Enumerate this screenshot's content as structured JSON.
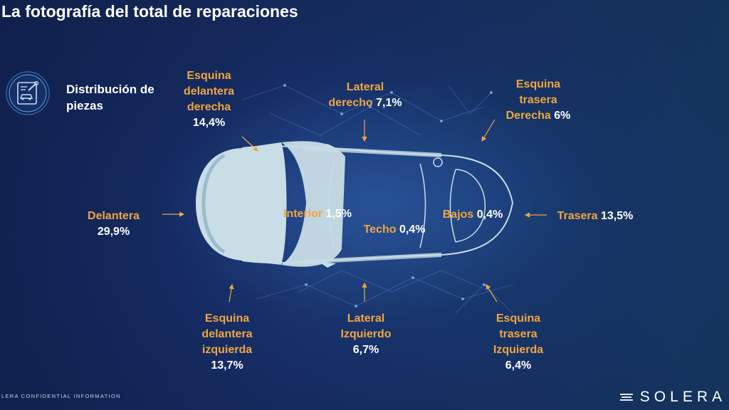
{
  "title": "La fotografía del total de reparaciones",
  "section": {
    "icon": "car-parts-distribution-icon",
    "label": "Distribución de piezas"
  },
  "labels": {
    "delantera": {
      "name": "Delantera",
      "value": "29,9%"
    },
    "esquina_del_der": {
      "line1": "Esquina",
      "line2": "delantera",
      "line3": "derecha",
      "value": "14,4%"
    },
    "lateral_der": {
      "line1": "Lateral",
      "line2": "derecho",
      "value": "7,1%"
    },
    "esquina_tras_der": {
      "line1": "Esquina",
      "line2": "trasera",
      "line3": "Derecha",
      "value": "6%"
    },
    "interior": {
      "name": "Interior",
      "value": "1,5%"
    },
    "techo": {
      "name": "Techo",
      "value": "0,4%"
    },
    "bajos": {
      "name": "Bajos",
      "value": "0,4%"
    },
    "trasera": {
      "name": "Trasera",
      "value": "13,5%"
    },
    "esquina_del_izq": {
      "line1": "Esquina",
      "line2": "delantera",
      "line3": "izquierda",
      "value": "13,7%"
    },
    "lateral_izq": {
      "line1": "Lateral",
      "line2": "Izquierdo",
      "value": "6,7%"
    },
    "esquina_tras_izq": {
      "line1": "Esquina",
      "line2": "trasera",
      "line3": "Izquierda",
      "value": "6,4%"
    }
  },
  "footer": "LERA CONFIDENTIAL INFORMATION",
  "logo": "SOLERA",
  "colors": {
    "accent": "#f0a640",
    "background": "#17306a",
    "car": "#c9dde6"
  }
}
